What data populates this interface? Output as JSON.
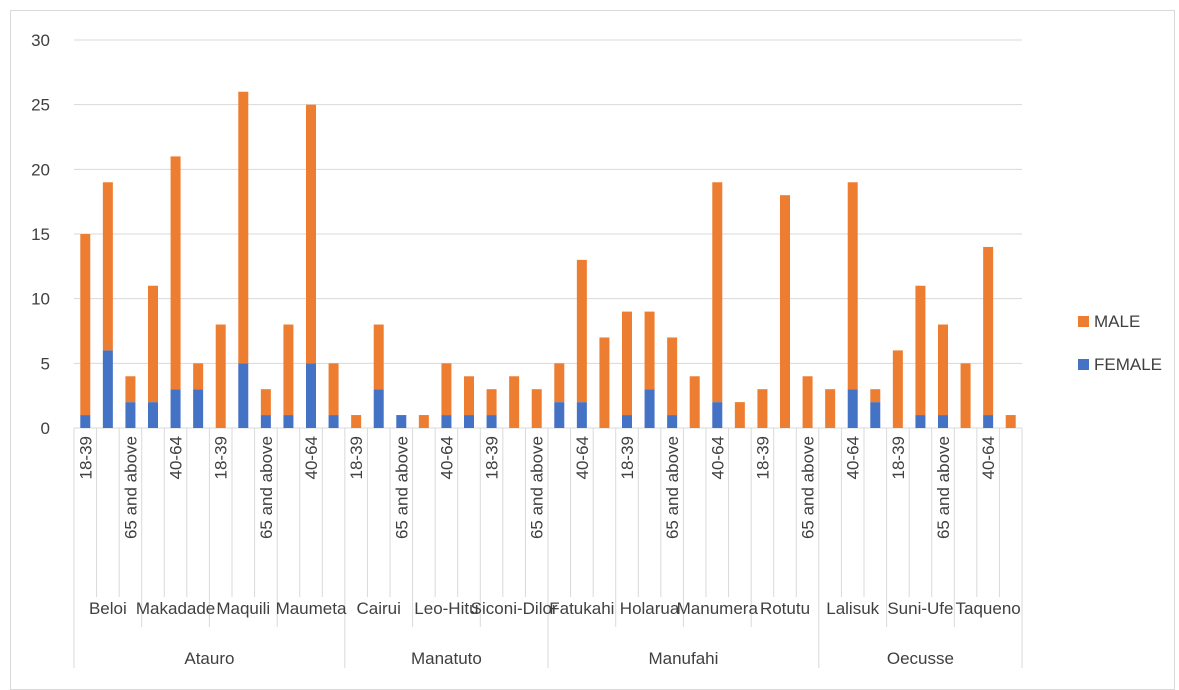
{
  "chart_data": {
    "type": "bar",
    "stacked": true,
    "ylim": [
      0,
      30
    ],
    "yticks": [
      0,
      5,
      10,
      15,
      20,
      25,
      30
    ],
    "grid": true,
    "legend_position": "right",
    "colors": {
      "MALE": "#ed7d31",
      "FEMALE": "#4472c4"
    },
    "categories": [
      {
        "age": "18-39",
        "site": "Beloi",
        "region": "Atauro"
      },
      {
        "age": "40-64",
        "site": "Beloi",
        "region": "Atauro"
      },
      {
        "age": "65 and above",
        "site": "Beloi",
        "region": "Atauro"
      },
      {
        "age": "18-39",
        "site": "Makadade",
        "region": "Atauro"
      },
      {
        "age": "40-64",
        "site": "Makadade",
        "region": "Atauro"
      },
      {
        "age": "65 and above",
        "site": "Makadade",
        "region": "Atauro"
      },
      {
        "age": "18-39",
        "site": "Maquili",
        "region": "Atauro"
      },
      {
        "age": "40-64",
        "site": "Maquili",
        "region": "Atauro"
      },
      {
        "age": "65 and above",
        "site": "Maquili",
        "region": "Atauro"
      },
      {
        "age": "18-39",
        "site": "Maumeta",
        "region": "Atauro"
      },
      {
        "age": "40-64",
        "site": "Maumeta",
        "region": "Atauro"
      },
      {
        "age": "65 and above",
        "site": "Maumeta",
        "region": "Atauro"
      },
      {
        "age": "18-39",
        "site": "Cairui",
        "region": "Manatuto"
      },
      {
        "age": "40-64",
        "site": "Cairui",
        "region": "Manatuto"
      },
      {
        "age": "65 and above",
        "site": "Cairui",
        "region": "Manatuto"
      },
      {
        "age": "18-39",
        "site": "Leo-Hitu",
        "region": "Manatuto"
      },
      {
        "age": "40-64",
        "site": "Leo-Hitu",
        "region": "Manatuto"
      },
      {
        "age": "65 and above",
        "site": "Leo-Hitu",
        "region": "Manatuto"
      },
      {
        "age": "18-39",
        "site": "Siconi-Dilor",
        "region": "Manatuto"
      },
      {
        "age": "40-64",
        "site": "Siconi-Dilor",
        "region": "Manatuto"
      },
      {
        "age": "65 and above",
        "site": "Siconi-Dilor",
        "region": "Manatuto"
      },
      {
        "age": "18-39",
        "site": "Fatukahi",
        "region": "Manufahi"
      },
      {
        "age": "40-64",
        "site": "Fatukahi",
        "region": "Manufahi"
      },
      {
        "age": "65 and above",
        "site": "Fatukahi",
        "region": "Manufahi"
      },
      {
        "age": "18-39",
        "site": "Holarua",
        "region": "Manufahi"
      },
      {
        "age": "40-64",
        "site": "Holarua",
        "region": "Manufahi"
      },
      {
        "age": "65 and above",
        "site": "Holarua",
        "region": "Manufahi"
      },
      {
        "age": "18-39",
        "site": "Manumera",
        "region": "Manufahi"
      },
      {
        "age": "40-64",
        "site": "Manumera",
        "region": "Manufahi"
      },
      {
        "age": "65 and above",
        "site": "Manumera",
        "region": "Manufahi"
      },
      {
        "age": "18-39",
        "site": "Rotutu",
        "region": "Manufahi"
      },
      {
        "age": "40-64",
        "site": "Rotutu",
        "region": "Manufahi"
      },
      {
        "age": "65 and above",
        "site": "Rotutu",
        "region": "Manufahi"
      },
      {
        "age": "18-39",
        "site": "Lalisuk",
        "region": "Oecusse"
      },
      {
        "age": "40-64",
        "site": "Lalisuk",
        "region": "Oecusse"
      },
      {
        "age": "65 and above",
        "site": "Lalisuk",
        "region": "Oecusse"
      },
      {
        "age": "18-39",
        "site": "Suni-Ufe",
        "region": "Oecusse"
      },
      {
        "age": "40-64",
        "site": "Suni-Ufe",
        "region": "Oecusse"
      },
      {
        "age": "65 and above",
        "site": "Suni-Ufe",
        "region": "Oecusse"
      },
      {
        "age": "18-39",
        "site": "Taqueno",
        "region": "Oecusse"
      },
      {
        "age": "40-64",
        "site": "Taqueno",
        "region": "Oecusse"
      },
      {
        "age": "65 and above",
        "site": "Taqueno",
        "region": "Oecusse"
      }
    ],
    "series": [
      {
        "name": "FEMALE",
        "values": [
          1,
          6,
          2,
          2,
          3,
          3,
          0,
          5,
          1,
          1,
          5,
          1,
          0,
          3,
          1,
          0,
          1,
          1,
          1,
          0,
          0,
          2,
          2,
          0,
          1,
          3,
          1,
          0,
          2,
          0,
          0,
          0,
          0,
          0,
          3,
          2,
          0,
          1,
          1,
          0,
          1,
          0
        ]
      },
      {
        "name": "MALE",
        "values": [
          14,
          13,
          2,
          9,
          18,
          2,
          8,
          21,
          2,
          7,
          20,
          4,
          1,
          5,
          0,
          1,
          4,
          3,
          2,
          4,
          3,
          3,
          11,
          7,
          8,
          6,
          6,
          4,
          17,
          2,
          3,
          18,
          4,
          3,
          16,
          1,
          6,
          10,
          7,
          5,
          13,
          1
        ]
      }
    ],
    "legend": [
      "MALE",
      "FEMALE"
    ]
  }
}
